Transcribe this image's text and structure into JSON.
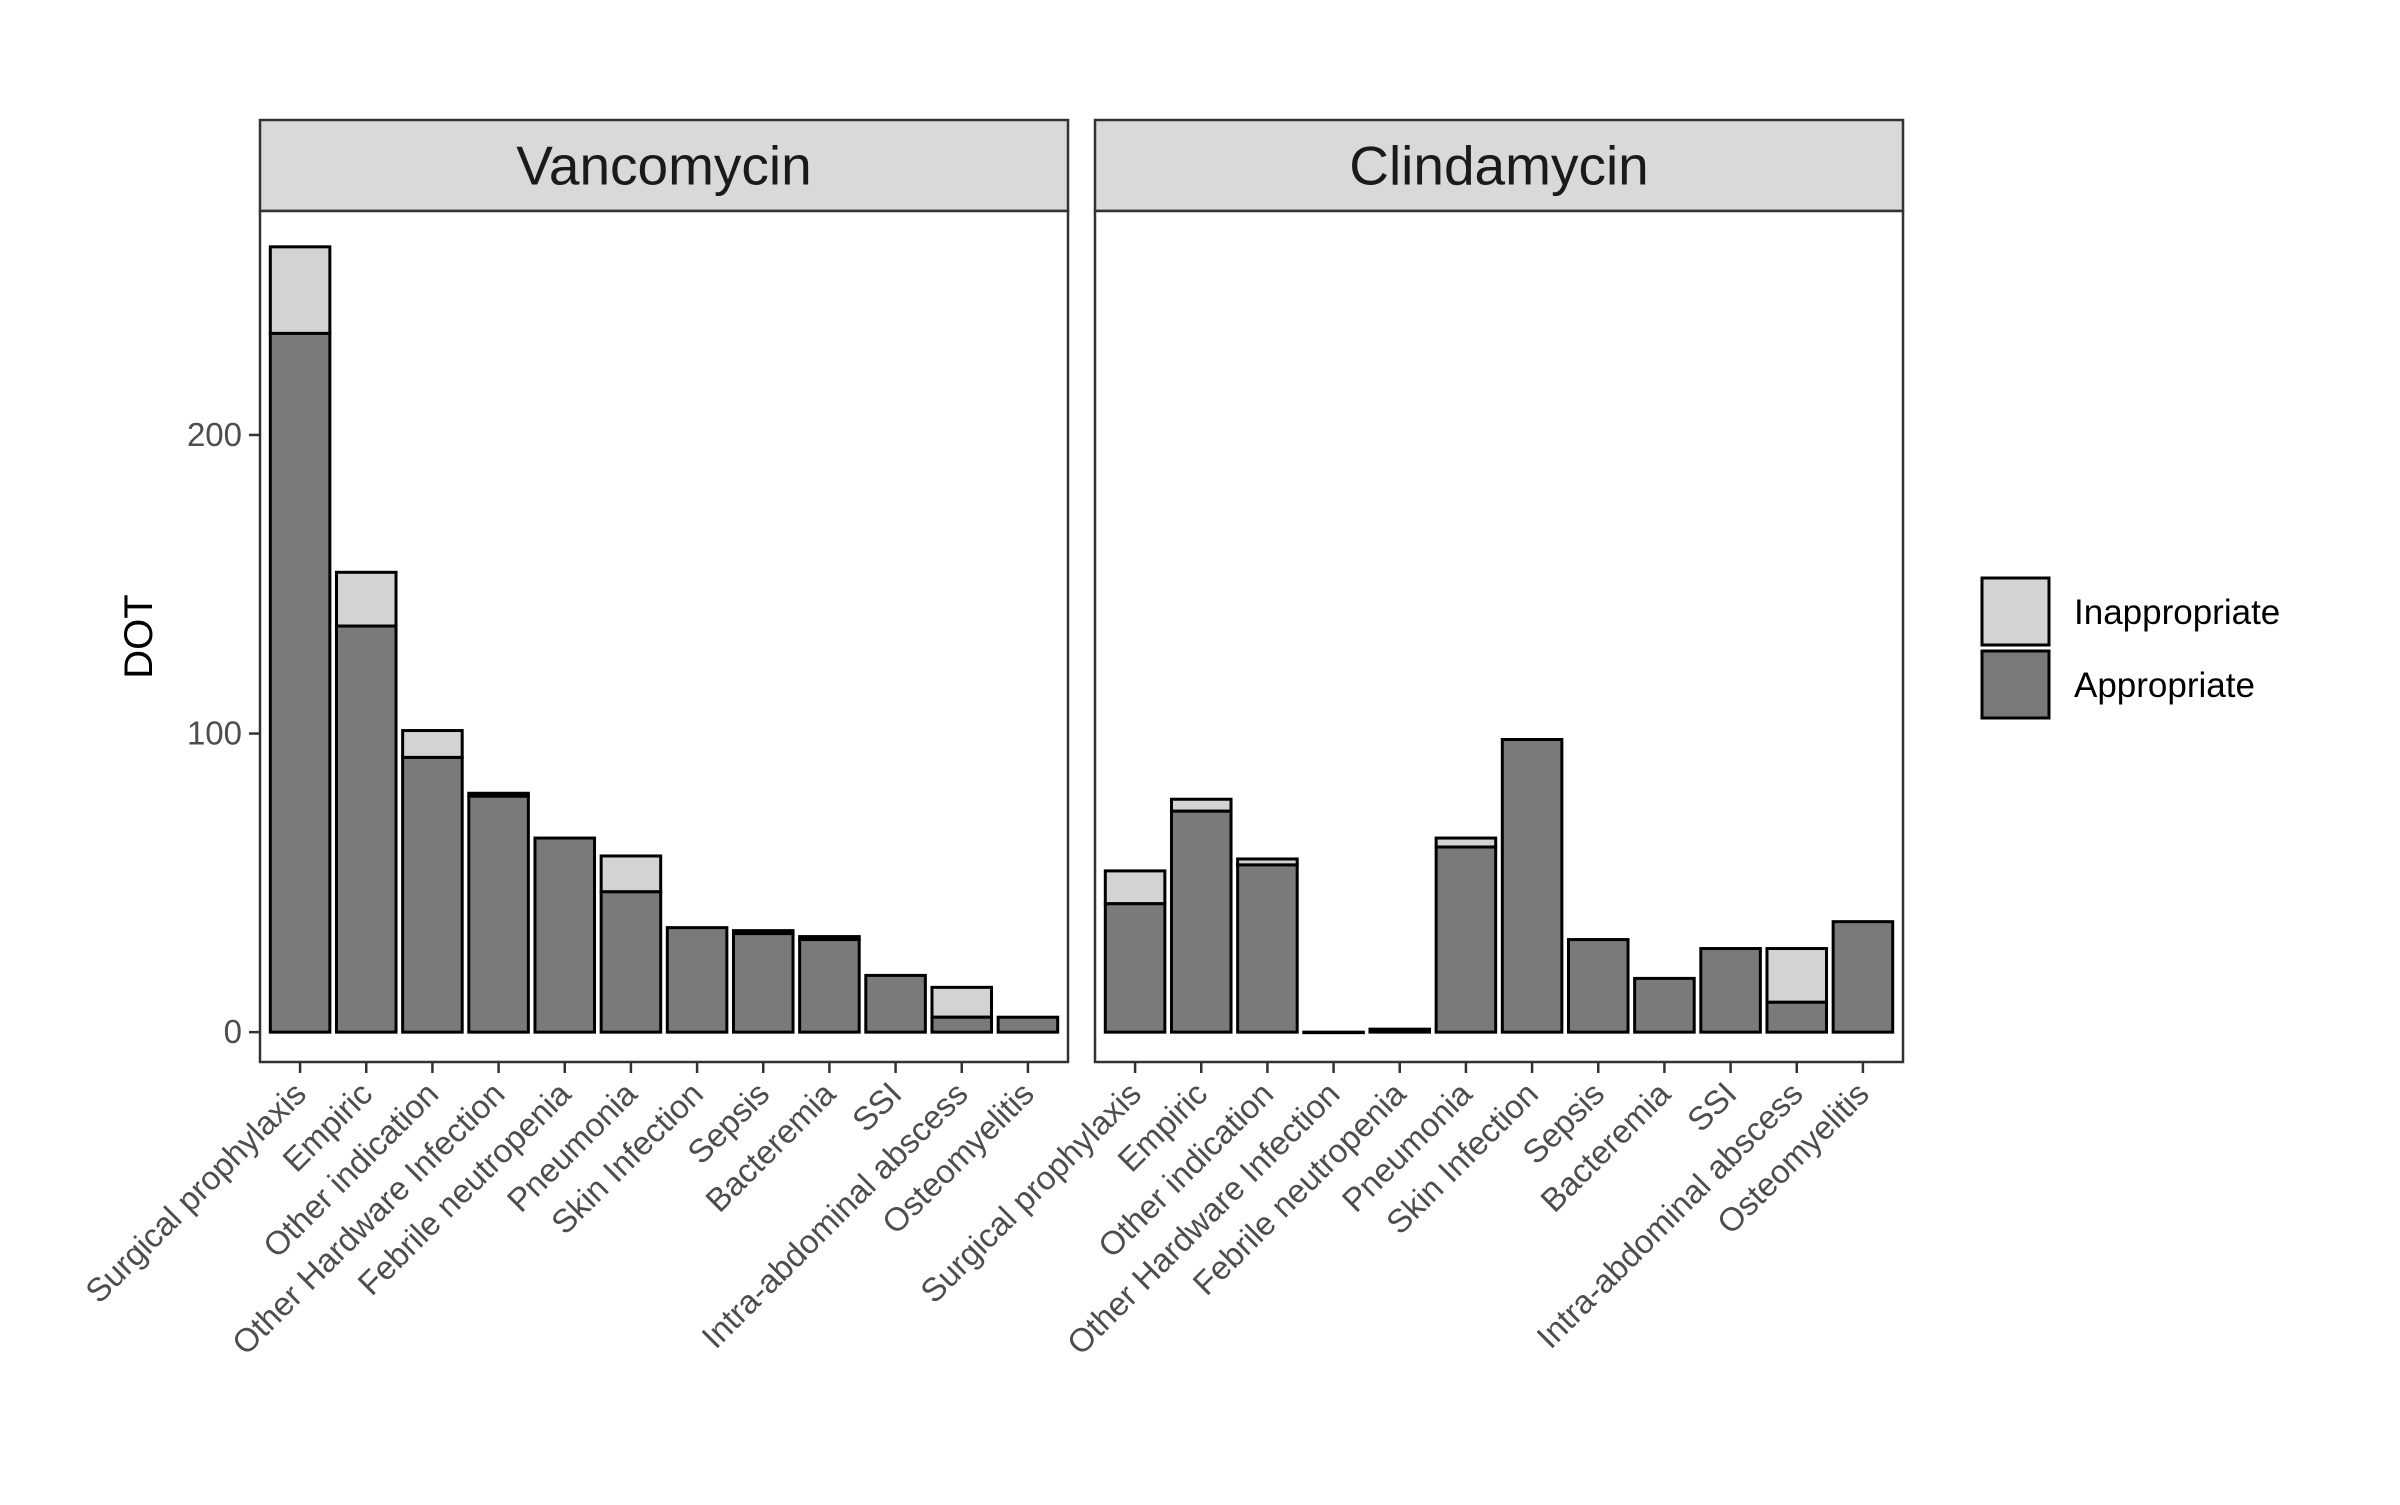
{
  "chart_data": {
    "type": "bar",
    "stacked": true,
    "ylabel": "DOT",
    "xlabel": "",
    "ylim": [
      -10,
      275
    ],
    "yticks": [
      0,
      100,
      200
    ],
    "grid": false,
    "legend_position": "right",
    "categories": [
      "Surgical prophylaxis",
      "Empiric",
      "Other indication",
      "Other Hardware Infection",
      "Febrile neutropenia",
      "Pneumonia",
      "Skin Infection",
      "Sepsis",
      "Bacteremia",
      "SSI",
      "Intra-abdominal abscess",
      "Osteomyelitis"
    ],
    "series_names": [
      "Inappropriate",
      "Appropriate"
    ],
    "series_colors": {
      "Inappropriate": "#d3d3d3",
      "Appropriate": "#7a7a7a"
    },
    "panels": [
      {
        "title": "Vancomycin",
        "appropriate": [
          234,
          136,
          92,
          79,
          65,
          47,
          35,
          33,
          31,
          19,
          5,
          5
        ],
        "inappropriate": [
          29,
          18,
          9,
          1,
          0,
          12,
          0,
          1,
          1,
          0,
          10,
          0
        ]
      },
      {
        "title": "Clindamycin",
        "appropriate": [
          43,
          74,
          56,
          0,
          1,
          62,
          98,
          31,
          18,
          28,
          10,
          37
        ],
        "inappropriate": [
          11,
          4,
          2,
          0,
          0,
          3,
          0,
          0,
          0,
          0,
          18,
          0
        ]
      }
    ]
  }
}
